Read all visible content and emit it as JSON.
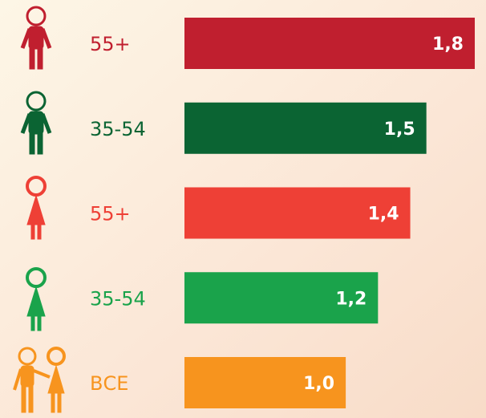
{
  "chart_data": {
    "type": "bar",
    "orientation": "horizontal",
    "categories": [
      "55+",
      "35-54",
      "55+",
      "35-54",
      "ВСЕ"
    ],
    "values": [
      1.8,
      1.5,
      1.4,
      1.2,
      1.0
    ],
    "value_labels": [
      "1,8",
      "1,5",
      "1,4",
      "1,2",
      "1,0"
    ],
    "colors": [
      "#c01f2f",
      "#0b6433",
      "#ee4036",
      "#1aa34b",
      "#f7941e"
    ],
    "xlim": [
      0,
      1.8
    ]
  }
}
